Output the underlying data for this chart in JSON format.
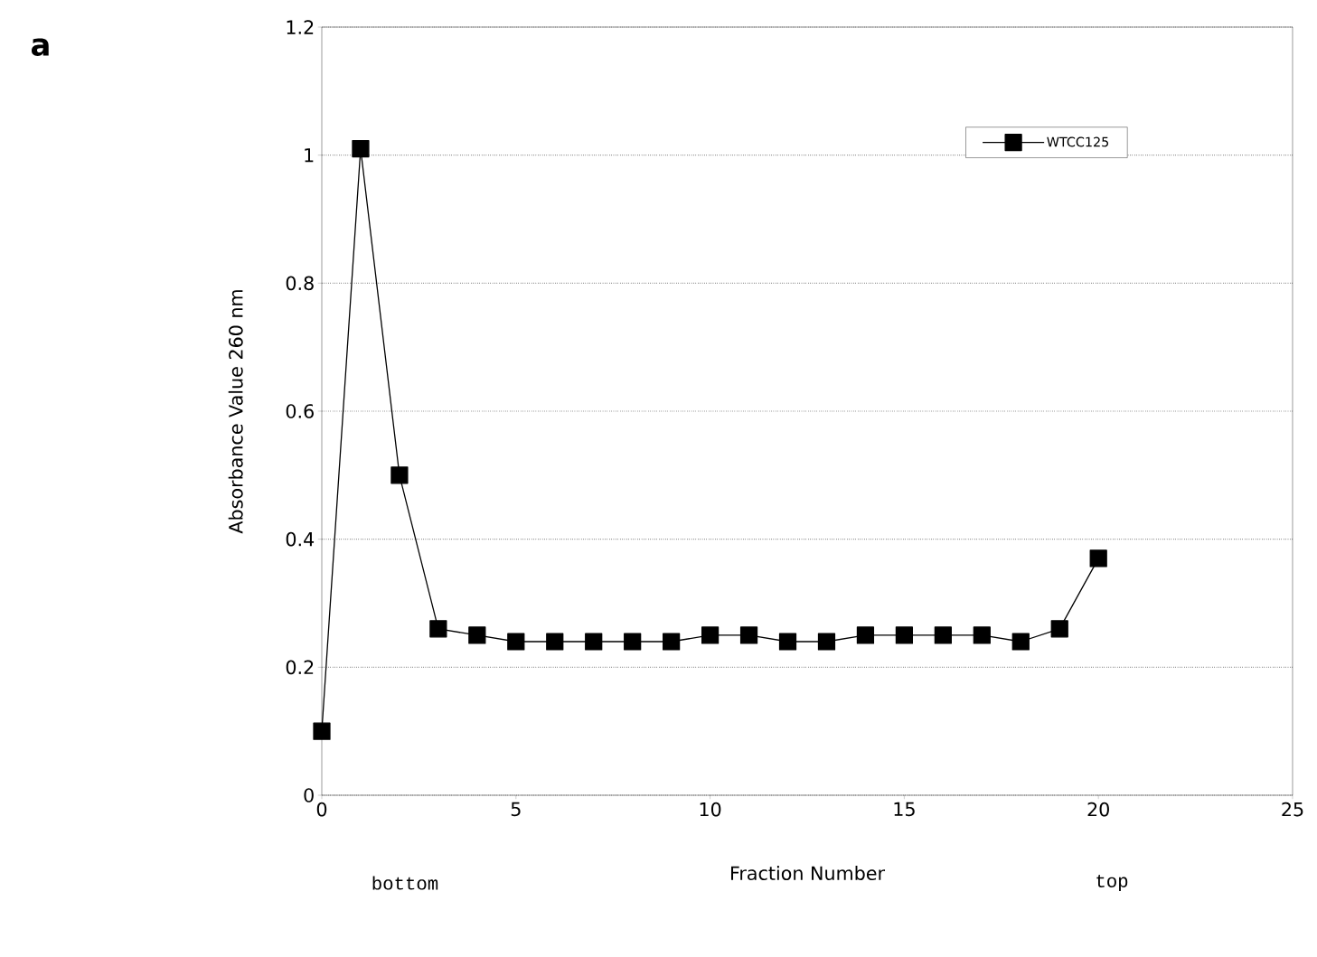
{
  "chart_data": {
    "type": "line",
    "xlabel": "Fraction Number",
    "ylabel": "Absorbance Value 260 nm",
    "annotations": [
      "a",
      "bottom",
      "top"
    ],
    "x": [
      0,
      1,
      2,
      3,
      4,
      5,
      6,
      7,
      8,
      9,
      10,
      11,
      12,
      13,
      14,
      15,
      16,
      17,
      18,
      19,
      20
    ],
    "series": [
      {
        "name": "WTCC125",
        "color": "#000000",
        "values": [
          0.1,
          1.01,
          0.5,
          0.26,
          0.25,
          0.24,
          0.24,
          0.24,
          0.24,
          0.24,
          0.25,
          0.25,
          0.24,
          0.24,
          0.25,
          0.25,
          0.25,
          0.25,
          0.24,
          0.26,
          0.37
        ]
      }
    ],
    "xlim": [
      0,
      25
    ],
    "xticks": [
      0,
      5,
      10,
      15,
      20,
      25
    ],
    "ylim": [
      0,
      1.2
    ],
    "yticks": [
      0,
      0.2,
      0.4,
      0.6,
      0.8,
      1,
      1.2
    ],
    "grid": "y",
    "legend": "top right",
    "marker": "square",
    "line_style": "solid"
  }
}
